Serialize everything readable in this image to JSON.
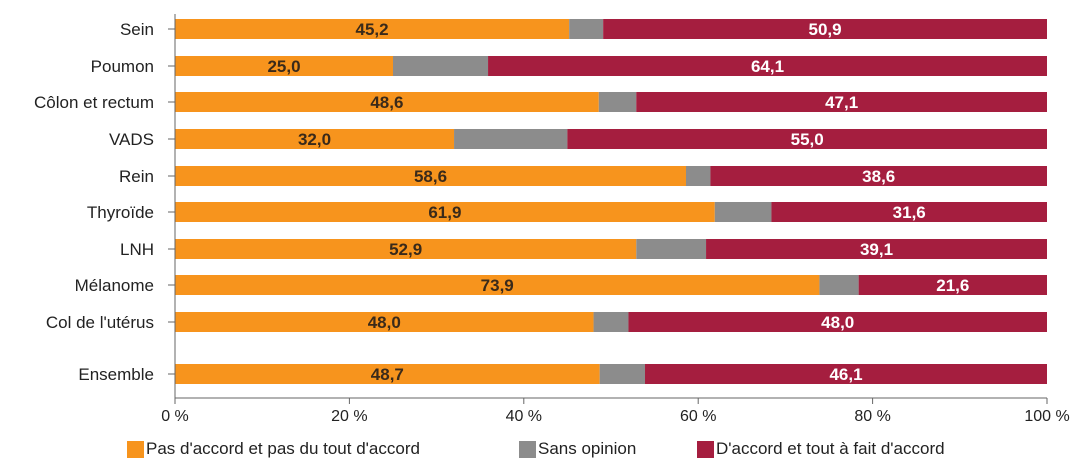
{
  "chart_data": {
    "type": "bar",
    "orientation": "horizontal",
    "stacked": true,
    "categories": [
      "Sein",
      "Poumon",
      "Côlon et rectum",
      "VADS",
      "Rein",
      "Thyroïde",
      "LNH",
      "Mélanome",
      "Col de l'utérus",
      "Ensemble"
    ],
    "series": [
      {
        "name": "Pas  d'accord et pas du tout d'accord",
        "color": "#F7941D",
        "values": [
          45.2,
          25.0,
          48.6,
          32.0,
          58.6,
          61.9,
          52.9,
          73.9,
          48.0,
          48.7
        ],
        "labels": [
          "45,2",
          "25,0",
          "48,6",
          "32,0",
          "58,6",
          "61,9",
          "52,9",
          "73,9",
          "48,0",
          "48,7"
        ]
      },
      {
        "name": "Sans opinion",
        "color": "#8C8C8C",
        "values": [
          3.9,
          10.9,
          4.3,
          13.0,
          2.8,
          6.5,
          8.0,
          4.5,
          4.0,
          5.2
        ],
        "labels": [
          "",
          "",
          "",
          "",
          "",
          "",
          "",
          "",
          "",
          ""
        ]
      },
      {
        "name": "D'accord et tout à fait d'accord",
        "color": "#A51E3F",
        "values": [
          50.9,
          64.1,
          47.1,
          55.0,
          38.6,
          31.6,
          39.1,
          21.6,
          48.0,
          46.1
        ],
        "labels": [
          "50,9",
          "64,1",
          "47,1",
          "55,0",
          "38,6",
          "31,6",
          "39,1",
          "21,6",
          "48,0",
          "46,1"
        ]
      }
    ],
    "xlim": [
      0,
      100
    ],
    "x_ticks": [
      0,
      20,
      40,
      60,
      80,
      100
    ],
    "x_tick_labels": [
      "0 %",
      "20 %",
      "40 %",
      "60 %",
      "80 %",
      "100 %"
    ],
    "grid": false,
    "legend_position": "bottom"
  }
}
